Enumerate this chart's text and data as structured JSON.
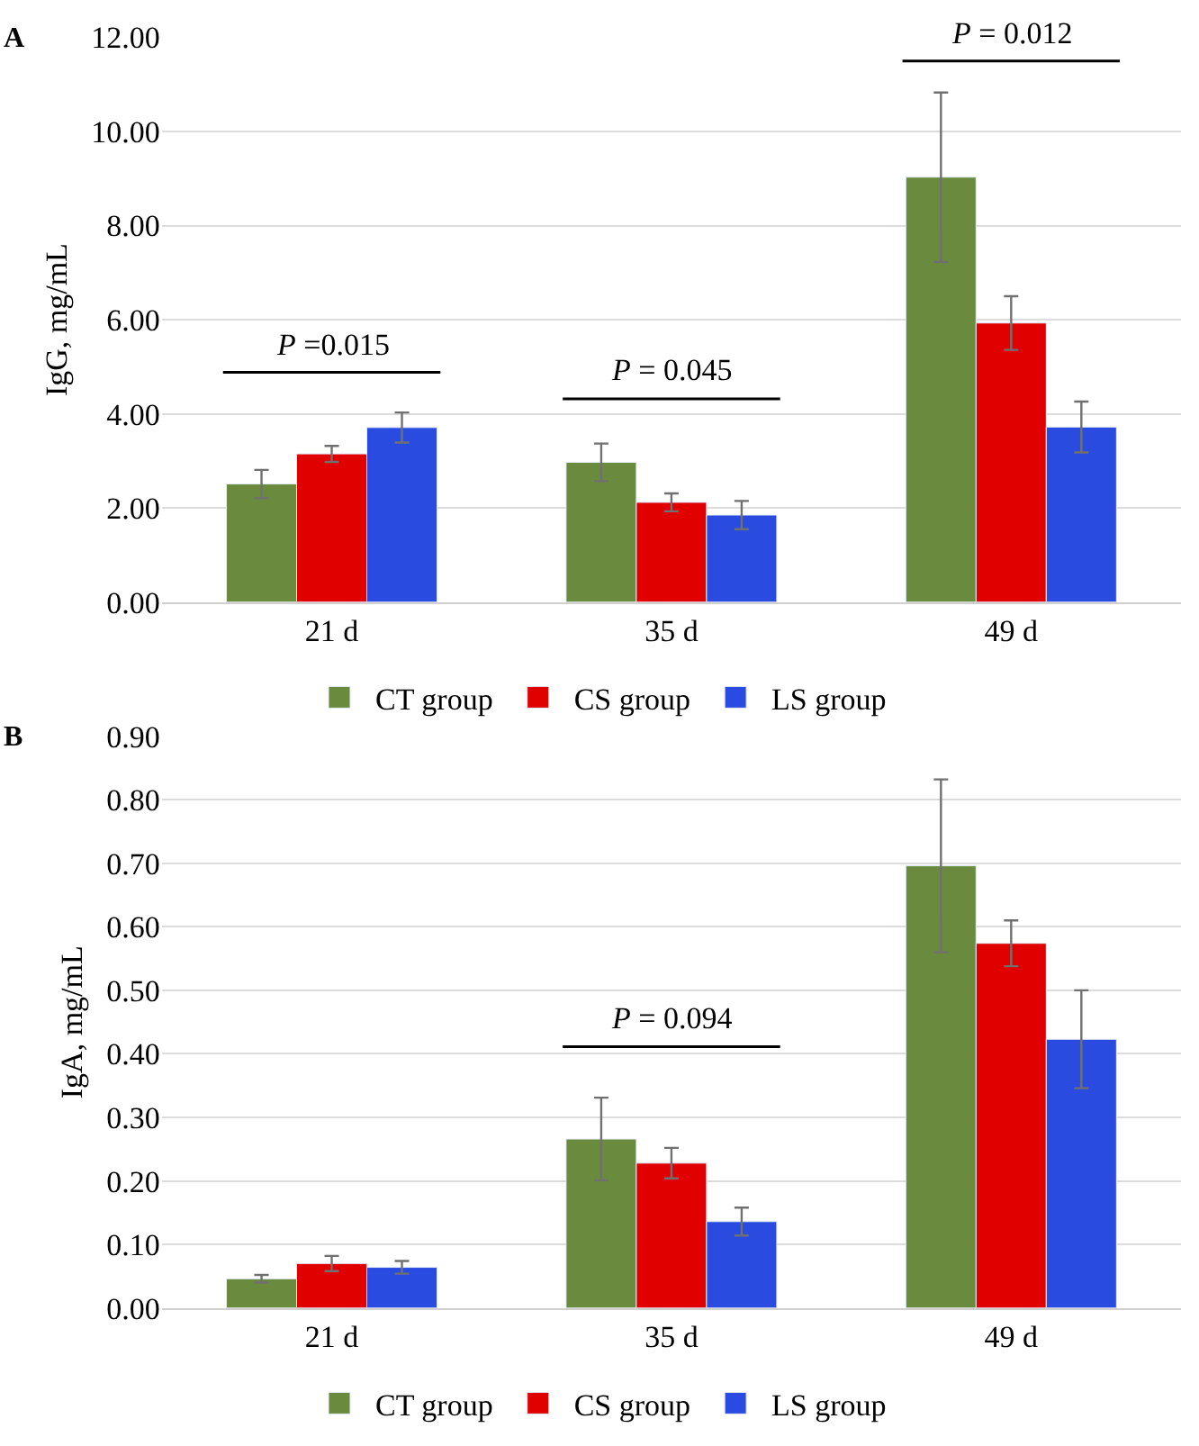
{
  "chart_data": [
    {
      "type": "bar",
      "title": "A",
      "ylabel": "IgG, mg/mL",
      "categories": [
        "21 d",
        "35 d",
        "49 d"
      ],
      "series": [
        {
          "name": "CT group",
          "color": "#6a8b3e",
          "values": [
            2.51,
            2.97,
            9.03
          ],
          "errors": [
            0.3,
            0.4,
            1.8
          ]
        },
        {
          "name": "CS group",
          "color": "#e00000",
          "values": [
            3.15,
            2.12,
            5.93
          ],
          "errors": [
            0.17,
            0.19,
            0.57
          ]
        },
        {
          "name": "LS group",
          "color": "#2a4be0",
          "values": [
            3.71,
            1.85,
            3.72
          ],
          "errors": [
            0.32,
            0.3,
            0.54
          ]
        }
      ],
      "ylim": [
        0,
        12
      ],
      "yticks": [
        {
          "value": 0,
          "label": "0.00"
        },
        {
          "value": 2,
          "label": "2.00"
        },
        {
          "value": 4,
          "label": "4.00"
        },
        {
          "value": 6,
          "label": "6.00"
        },
        {
          "value": 8,
          "label": "8.00"
        },
        {
          "value": 10,
          "label": "10.00"
        },
        {
          "value": 12,
          "label": "12.00"
        }
      ],
      "annotations": [
        "P =0.015",
        "P = 0.045",
        "P = 0.012"
      ],
      "grid": "y",
      "legend": "bottom"
    },
    {
      "type": "bar",
      "title": "B",
      "ylabel": "IgA, mg/mL",
      "categories": [
        "21 d",
        "35 d",
        "49 d"
      ],
      "series": [
        {
          "name": "CT group",
          "color": "#6a8b3e",
          "values": [
            0.046,
            0.266,
            0.696
          ],
          "errors": [
            0.006,
            0.065,
            0.136
          ]
        },
        {
          "name": "CS group",
          "color": "#e00000",
          "values": [
            0.07,
            0.228,
            0.574
          ],
          "errors": [
            0.012,
            0.024,
            0.036
          ]
        },
        {
          "name": "LS group",
          "color": "#2a4be0",
          "values": [
            0.064,
            0.136,
            0.423
          ],
          "errors": [
            0.01,
            0.022,
            0.077
          ]
        }
      ],
      "ylim": [
        0,
        0.9
      ],
      "yticks": [
        {
          "value": 0,
          "label": "0.00"
        },
        {
          "value": 0.1,
          "label": "0.10"
        },
        {
          "value": 0.2,
          "label": "0.20"
        },
        {
          "value": 0.3,
          "label": "0.30"
        },
        {
          "value": 0.4,
          "label": "0.40"
        },
        {
          "value": 0.5,
          "label": "0.50"
        },
        {
          "value": 0.6,
          "label": "0.60"
        },
        {
          "value": 0.7,
          "label": "0.70"
        },
        {
          "value": 0.8,
          "label": "0.80"
        },
        {
          "value": 0.9,
          "label": "0.90"
        }
      ],
      "annotations": [
        "P = 0.094"
      ],
      "grid": "y",
      "legend": "bottom"
    }
  ]
}
